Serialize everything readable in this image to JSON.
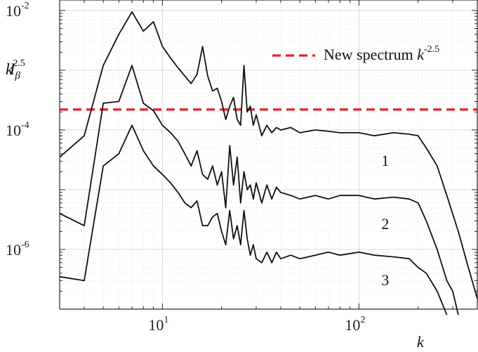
{
  "chart_data": {
    "type": "line",
    "title": "",
    "xscale": "log",
    "yscale": "log",
    "xlim": [
      3,
      400
    ],
    "ylim": [
      1e-07,
      0.015
    ],
    "grid": true,
    "xlabel": "k",
    "ylabel": {
      "base": "k",
      "exponent": "2.5",
      "symbol": "I",
      "subscript": "β"
    },
    "xticks": [
      {
        "value": 10,
        "base": "10",
        "exp": "1"
      },
      {
        "value": 100,
        "base": "10",
        "exp": "2"
      }
    ],
    "yticks": [
      {
        "value": 0.01,
        "base": "10",
        "exp": "-2"
      },
      {
        "value": 0.0001,
        "base": "10",
        "exp": "-4"
      },
      {
        "value": 1e-06,
        "base": "10",
        "exp": "-6"
      }
    ],
    "legend": {
      "position": "top-right",
      "entries": [
        {
          "text": "New spectrum ",
          "math_base": "k",
          "math_exp": "-2.5",
          "color": "#e8202a",
          "style": "dashed"
        }
      ]
    },
    "reference_line": {
      "y": 0.00022,
      "color": "#e8202a"
    },
    "series": [
      {
        "label": "1",
        "label_at": {
          "x": 130,
          "y": 2.5e-05
        },
        "x": [
          3,
          4,
          5,
          6,
          7,
          8,
          9,
          10,
          11,
          12,
          13,
          14,
          15,
          16,
          17,
          18,
          19,
          20,
          21,
          22,
          23,
          24,
          25,
          26,
          27,
          28,
          29,
          30,
          32,
          34,
          36,
          38,
          40,
          45,
          50,
          60,
          70,
          80,
          100,
          120,
          150,
          180,
          200,
          220,
          250,
          280,
          320,
          360,
          400
        ],
        "y": [
          3.5e-05,
          8e-05,
          0.0012,
          0.004,
          0.0095,
          0.0045,
          0.0065,
          0.0025,
          0.0016,
          0.0011,
          0.0008,
          0.0006,
          0.00085,
          0.0025,
          0.0008,
          0.00045,
          0.0005,
          0.0003,
          0.00015,
          0.00025,
          0.00035,
          0.00015,
          0.00012,
          0.0012,
          0.0002,
          0.00025,
          0.00012,
          0.00018,
          8e-05,
          0.00012,
          9e-05,
          0.00011,
          0.0001,
          0.00011,
          9e-05,
          0.0001,
          9.5e-05,
          9e-05,
          9e-05,
          8e-05,
          9e-05,
          8.5e-05,
          8e-05,
          5e-05,
          2.5e-05,
          8e-06,
          2e-06,
          5e-07,
          1.5e-07
        ]
      },
      {
        "label": "2",
        "label_at": {
          "x": 130,
          "y": 2.2e-06
        },
        "x": [
          3,
          4,
          5,
          6,
          7,
          8,
          9,
          10,
          11,
          12,
          13,
          14,
          15,
          16,
          17,
          18,
          19,
          20,
          21,
          22,
          23,
          24,
          25,
          26,
          27,
          28,
          29,
          30,
          32,
          34,
          36,
          38,
          40,
          45,
          50,
          60,
          70,
          80,
          100,
          120,
          150,
          180,
          200,
          220,
          250,
          280,
          300,
          320
        ],
        "y": [
          4e-06,
          2.5e-06,
          0.00028,
          0.0003,
          0.0012,
          0.00028,
          0.00021,
          0.00012,
          9e-05,
          6.5e-05,
          4e-05,
          2.5e-05,
          4.5e-05,
          1.8e-05,
          1.5e-05,
          2.5e-05,
          1.2e-05,
          2e-05,
          5e-06,
          5.5e-05,
          1.2e-05,
          3.5e-05,
          6e-06,
          2e-05,
          1e-05,
          1.2e-05,
          7e-06,
          1.3e-05,
          6e-06,
          1.2e-05,
          7e-06,
          1.1e-05,
          9e-06,
          8e-06,
          7e-06,
          8e-06,
          7e-06,
          8e-06,
          8e-06,
          7e-06,
          7.5e-06,
          7e-06,
          6e-06,
          3e-06,
          1e-06,
          3e-07,
          2e-07,
          8e-08
        ]
      },
      {
        "label": "3",
        "label_at": {
          "x": 130,
          "y": 2.5e-07
        },
        "x": [
          3,
          4,
          5,
          6,
          7,
          8,
          9,
          10,
          11,
          12,
          13,
          14,
          15,
          16,
          17,
          18,
          19,
          20,
          21,
          22,
          23,
          24,
          25,
          26,
          27,
          28,
          29,
          30,
          32,
          34,
          36,
          38,
          40,
          45,
          50,
          60,
          70,
          80,
          100,
          120,
          150,
          180,
          200,
          220,
          250,
          280
        ],
        "y": [
          3.5e-07,
          3e-07,
          2.5e-05,
          4e-05,
          0.00012,
          4.5e-05,
          2.5e-05,
          1.8e-05,
          1.3e-05,
          9e-06,
          6e-06,
          5e-06,
          6.5e-06,
          2.5e-06,
          2.5e-06,
          3.5e-06,
          4e-06,
          2e-06,
          1.2e-06,
          4.5e-06,
          1.5e-06,
          2.5e-06,
          1.2e-06,
          4.5e-06,
          1.5e-06,
          8e-07,
          1.2e-06,
          7e-07,
          6e-07,
          9e-07,
          6e-07,
          9e-07,
          7e-07,
          8e-07,
          7e-07,
          8e-07,
          9e-07,
          8e-07,
          9e-07,
          8e-07,
          7.5e-07,
          7e-07,
          5e-07,
          4e-07,
          2e-07,
          8e-08
        ]
      }
    ]
  }
}
